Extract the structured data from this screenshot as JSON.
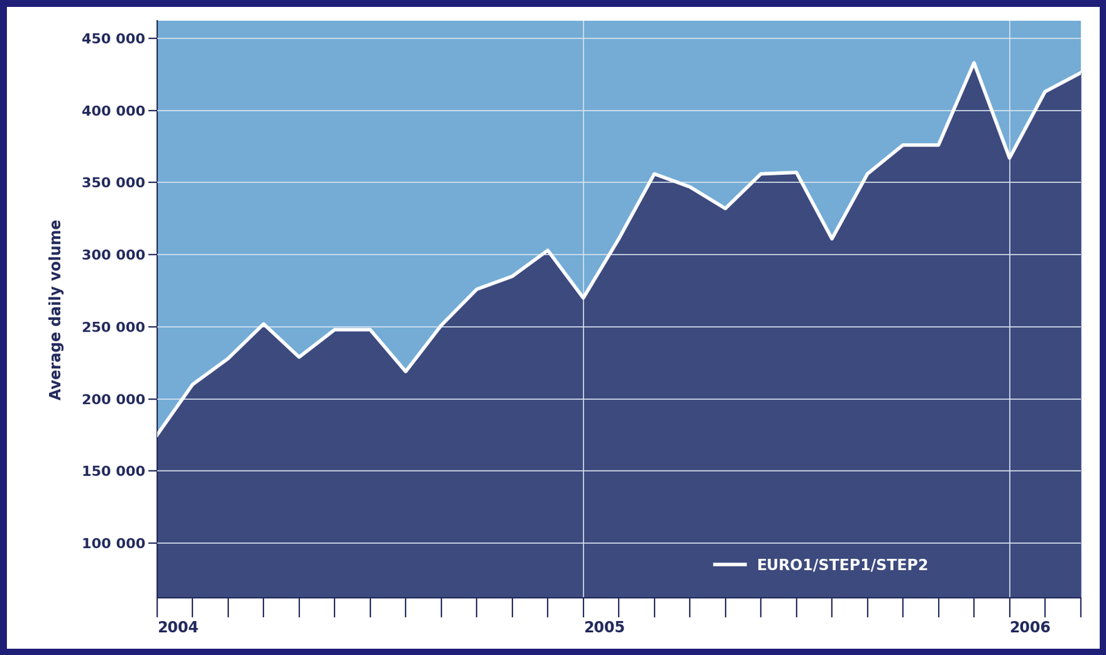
{
  "chart_data": {
    "type": "line",
    "y_label": "Average daily volume",
    "categories": [
      "2004",
      null,
      null,
      null,
      null,
      null,
      null,
      null,
      null,
      null,
      null,
      null,
      "2005",
      null,
      null,
      null,
      null,
      null,
      null,
      null,
      null,
      null,
      null,
      null,
      "2006",
      null,
      null
    ],
    "series": [
      {
        "name": "EURO1/STEP1/STEP2",
        "color": "#ffffff",
        "values": [
          175000,
          210000,
          228000,
          252000,
          229000,
          248000,
          248000,
          219000,
          251000,
          276000,
          285000,
          303000,
          270000,
          311000,
          356000,
          347000,
          332000,
          356000,
          357000,
          311000,
          356000,
          376000,
          376000,
          433000,
          367000,
          413000,
          426000
        ]
      }
    ],
    "ylim": [
      62000,
      462000
    ],
    "yticks": [
      {
        "value": 100000,
        "label": "100 000"
      },
      {
        "value": 150000,
        "label": "150 000"
      },
      {
        "value": 200000,
        "label": "200 000"
      },
      {
        "value": 250000,
        "label": "250 000"
      },
      {
        "value": 300000,
        "label": "300 000"
      },
      {
        "value": 350000,
        "label": "350 000"
      },
      {
        "value": 400000,
        "label": "400 000"
      },
      {
        "value": 450000,
        "label": "450 000"
      }
    ],
    "grid": true,
    "legend": "lower right"
  }
}
